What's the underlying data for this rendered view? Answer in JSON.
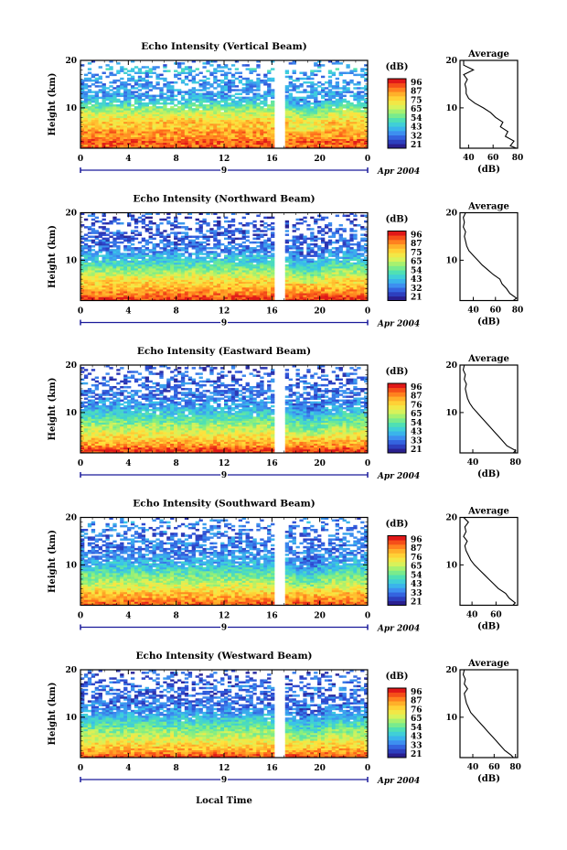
{
  "figure": {
    "x_axis_label": "Local Time",
    "date_label": "Apr 2004",
    "day_label": "9",
    "colorbar_unit": "(dB)",
    "average_title": "Average",
    "average_xlabel": "(dB)",
    "y_label": "Height (km)"
  },
  "colors": {
    "scale": [
      "#2a1f8f",
      "#2f4fd6",
      "#3d8ff0",
      "#39c6e8",
      "#4fe0b4",
      "#8ef07a",
      "#d8f25a",
      "#ffe23c",
      "#ffb02a",
      "#ff6a1a",
      "#e01818"
    ]
  },
  "chart_data": [
    {
      "type": "heatmap",
      "title": "Echo Intensity (Vertical Beam)",
      "xlabel": "",
      "ylabel": "Height (km)",
      "xlim": [
        0,
        24
      ],
      "ylim": [
        1.5,
        20
      ],
      "x_ticks": [
        "0",
        "4",
        "8",
        "12",
        "16",
        "20",
        "0"
      ],
      "y_ticks": [
        "10",
        "20"
      ],
      "colorbar_ticks": [
        "96",
        "87",
        "75",
        "65",
        "54",
        "43",
        "32",
        "21"
      ],
      "gap_hours": [
        16.3,
        17.1
      ],
      "average_profile": {
        "xlim": [
          33,
          80
        ],
        "x_ticks": [
          "40",
          "60",
          "80"
        ],
        "height": [
          1.5,
          2,
          3,
          4,
          5,
          6,
          7,
          8,
          9,
          10,
          11,
          12,
          13,
          14,
          15,
          16,
          17,
          18,
          19,
          20
        ],
        "db": [
          79,
          74,
          77,
          70,
          72,
          66,
          68,
          62,
          58,
          52,
          45,
          40,
          38,
          38,
          37,
          39,
          36,
          44,
          36,
          36
        ]
      }
    },
    {
      "type": "heatmap",
      "title": "Echo Intensity (Northward Beam)",
      "xlabel": "",
      "ylabel": "Height (km)",
      "xlim": [
        0,
        24
      ],
      "ylim": [
        1.5,
        20
      ],
      "x_ticks": [
        "0",
        "4",
        "8",
        "12",
        "16",
        "20",
        "0"
      ],
      "y_ticks": [
        "10",
        "20"
      ],
      "colorbar_ticks": [
        "96",
        "87",
        "75",
        "65",
        "54",
        "43",
        "32",
        "21"
      ],
      "gap_hours": [
        16.3,
        17.1
      ],
      "average_profile": {
        "xlim": [
          28,
          80
        ],
        "x_ticks": [
          "40",
          "60",
          "80"
        ],
        "height": [
          1.5,
          2,
          3,
          4,
          5,
          6,
          7,
          8,
          9,
          10,
          11,
          12,
          13,
          14,
          15,
          16,
          17,
          18,
          19,
          20
        ],
        "db": [
          76,
          79,
          73,
          70,
          66,
          64,
          58,
          53,
          48,
          44,
          40,
          36,
          34,
          33,
          32,
          33,
          31,
          32,
          31,
          33
        ]
      }
    },
    {
      "type": "heatmap",
      "title": "Echo Intensity (Eastward Beam)",
      "xlabel": "",
      "ylabel": "Height (km)",
      "xlim": [
        0,
        24
      ],
      "ylim": [
        1.5,
        20
      ],
      "x_ticks": [
        "0",
        "4",
        "8",
        "12",
        "16",
        "20",
        "0"
      ],
      "y_ticks": [
        "10",
        "20"
      ],
      "colorbar_ticks": [
        "96",
        "87",
        "76",
        "65",
        "54",
        "43",
        "33",
        "21"
      ],
      "gap_hours": [
        16.3,
        17.1
      ],
      "average_profile": {
        "xlim": [
          28,
          82
        ],
        "x_ticks": [
          "40",
          "80"
        ],
        "height": [
          1.5,
          2,
          3,
          4,
          5,
          6,
          7,
          8,
          9,
          10,
          11,
          12,
          13,
          14,
          15,
          16,
          17,
          18,
          19,
          20
        ],
        "db": [
          78,
          80,
          72,
          68,
          64,
          60,
          56,
          52,
          48,
          44,
          40,
          37,
          35,
          34,
          33,
          34,
          32,
          33,
          31,
          32
        ]
      }
    },
    {
      "type": "heatmap",
      "title": "Echo Intensity (Southward Beam)",
      "xlabel": "",
      "ylabel": "Height (km)",
      "xlim": [
        0,
        24
      ],
      "ylim": [
        1.5,
        20
      ],
      "x_ticks": [
        "0",
        "4",
        "8",
        "12",
        "16",
        "20",
        "0"
      ],
      "y_ticks": [
        "10",
        "20"
      ],
      "colorbar_ticks": [
        "96",
        "87",
        "76",
        "65",
        "54",
        "43",
        "33",
        "21"
      ],
      "gap_hours": [
        16.3,
        17.1
      ],
      "average_profile": {
        "xlim": [
          30,
          78
        ],
        "x_ticks": [
          "40",
          "60"
        ],
        "height": [
          1.5,
          2,
          3,
          4,
          5,
          6,
          7,
          8,
          9,
          10,
          11,
          12,
          13,
          14,
          15,
          16,
          17,
          18,
          19,
          20
        ],
        "db": [
          74,
          76,
          71,
          68,
          62,
          58,
          54,
          50,
          46,
          42,
          39,
          37,
          35,
          34,
          36,
          33,
          35,
          34,
          37,
          33
        ]
      }
    },
    {
      "type": "heatmap",
      "title": "Echo Intensity (Westward Beam)",
      "xlabel": "",
      "ylabel": "Height (km)",
      "xlim": [
        0,
        24
      ],
      "ylim": [
        1.5,
        20
      ],
      "x_ticks": [
        "0",
        "4",
        "8",
        "12",
        "16",
        "20",
        "0"
      ],
      "y_ticks": [
        "10",
        "20"
      ],
      "colorbar_ticks": [
        "96",
        "87",
        "76",
        "65",
        "54",
        "43",
        "33",
        "21"
      ],
      "gap_hours": [
        16.3,
        17.1
      ],
      "average_profile": {
        "xlim": [
          28,
          82
        ],
        "x_ticks": [
          "40",
          "60",
          "80"
        ],
        "height": [
          1.5,
          2,
          3,
          4,
          5,
          6,
          7,
          8,
          9,
          10,
          11,
          12,
          13,
          14,
          15,
          16,
          17,
          18,
          19,
          20
        ],
        "db": [
          78,
          76,
          70,
          66,
          62,
          58,
          54,
          50,
          46,
          42,
          38,
          36,
          34,
          33,
          32,
          35,
          32,
          33,
          31,
          32
        ]
      }
    }
  ]
}
